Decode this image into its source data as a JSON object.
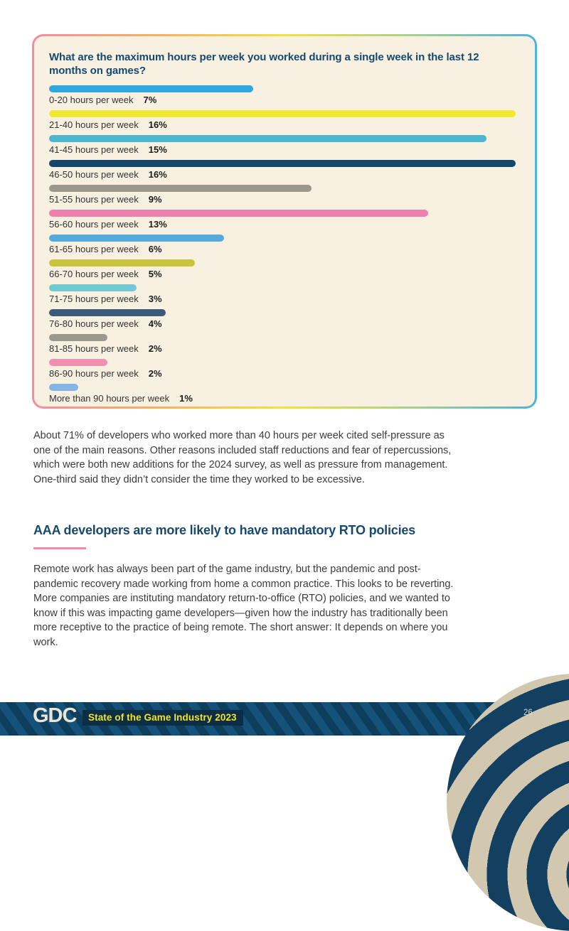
{
  "theme": {
    "navy": "#17496f",
    "pink_accent": "#ef8bab",
    "card_bg": "#f8f0e0",
    "footer_band": "#16517a",
    "footer_stripe": "#0e3e5e",
    "badge_bg": "#0b2e44",
    "badge_text": "#f2e327",
    "logo_color": "#ece4d4",
    "globe_cream": "#d2c8b0",
    "globe_navy": "#133f61",
    "border_gradient": [
      "#f18da4",
      "#f4b25c",
      "#f2e23d",
      "#a8d08d",
      "#4fb3d9"
    ]
  },
  "chart_data": {
    "type": "bar",
    "orientation": "horizontal",
    "title": "What are the maximum hours per week you worked during a single week in the last 12 months on games?",
    "categories": [
      "0-20 hours per week",
      "21-40 hours per week",
      "41-45 hours per week",
      "46-50 hours per week",
      "51-55 hours per week",
      "56-60 hours per week",
      "61-65 hours per week",
      "66-70 hours per week",
      "71-75 hours per week",
      "76-80 hours per week",
      "81-85 hours per week",
      "86-90 hours per week",
      "More than 90 hours per week"
    ],
    "values": [
      7,
      16,
      15,
      16,
      9,
      13,
      6,
      5,
      3,
      4,
      2,
      2,
      1
    ],
    "unit": "%",
    "xlim": [
      0,
      16
    ],
    "grid": false,
    "legend": false,
    "bar_colors": [
      "#2ea8de",
      "#f0e833",
      "#4bb6ce",
      "#15476b",
      "#9c988c",
      "#ee80ad",
      "#58aadd",
      "#c9c33e",
      "#72c9d4",
      "#3e5a7a",
      "#9c988c",
      "#f08fb1",
      "#83b5e5"
    ]
  },
  "body": {
    "paragraph1": "About 71% of developers who worked more than 40 hours per week cited self-pressure as one of the main reasons. Other reasons included staff reductions and fear of repercussions, which were both new additions for the 2024 survey, as well as pressure from management. One-third said they didn’t consider the time they worked to be excessive.",
    "heading": "AAA developers are more likely to have mandatory RTO policies",
    "paragraph2": "Remote work has always been part of the game industry, but the pandemic and post-pandemic recovery made working from home a common practice. This looks to be reverting. More companies are instituting mandatory return-to-office (RTO) policies, and we wanted to know if this was impacting game developers—given how the industry has traditionally been more receptive to the practice of being remote. The short answer: It depends on where you work."
  },
  "footer": {
    "logo_text": "GDC",
    "badge_label": "State of the Game Industry 2023",
    "page_number": "26"
  }
}
